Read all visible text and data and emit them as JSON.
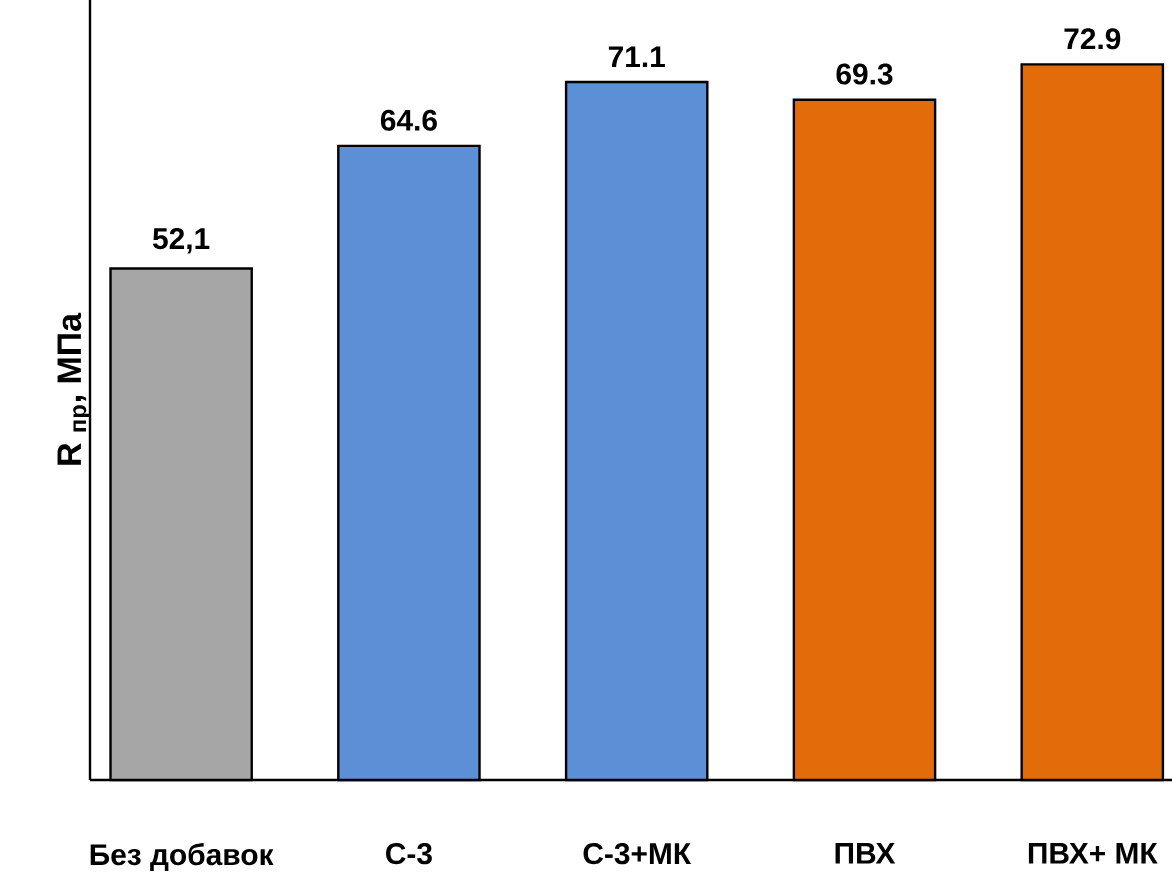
{
  "chart_data": {
    "type": "bar",
    "ylabel": "R $_{пр}$, МПа",
    "categories": [
      "Без добавок",
      "С-3",
      "С-3+МК",
      "ПВХ",
      "ПВХ+ МК"
    ],
    "values": [
      52.1,
      64.6,
      71.1,
      69.3,
      72.9
    ],
    "colors": [
      "#a6a6a6",
      "#5b8fd6",
      "#5b8fd6",
      "#e36c0a",
      "#e36c0a"
    ],
    "value_labels": [
      "52,1",
      "64.6",
      "71.1",
      "69.3",
      "72.9"
    ]
  }
}
